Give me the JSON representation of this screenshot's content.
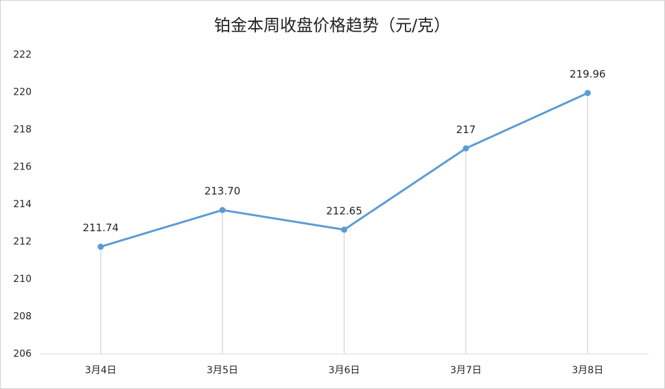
{
  "chart_data": {
    "type": "line",
    "title": "铂金本周收盘价格趋势（元/克）",
    "categories": [
      "3月4日",
      "3月5日",
      "3月6日",
      "3月7日",
      "3月8日"
    ],
    "values": [
      211.74,
      213.7,
      212.65,
      217,
      219.96
    ],
    "value_labels": [
      "211.74",
      "213.70",
      "212.65",
      "217",
      "219.96"
    ],
    "color": "#5b9bd5",
    "ylim": [
      206,
      222
    ],
    "yticks": [
      206,
      208,
      210,
      212,
      214,
      216,
      218,
      220,
      222
    ],
    "drop_lines": true
  }
}
